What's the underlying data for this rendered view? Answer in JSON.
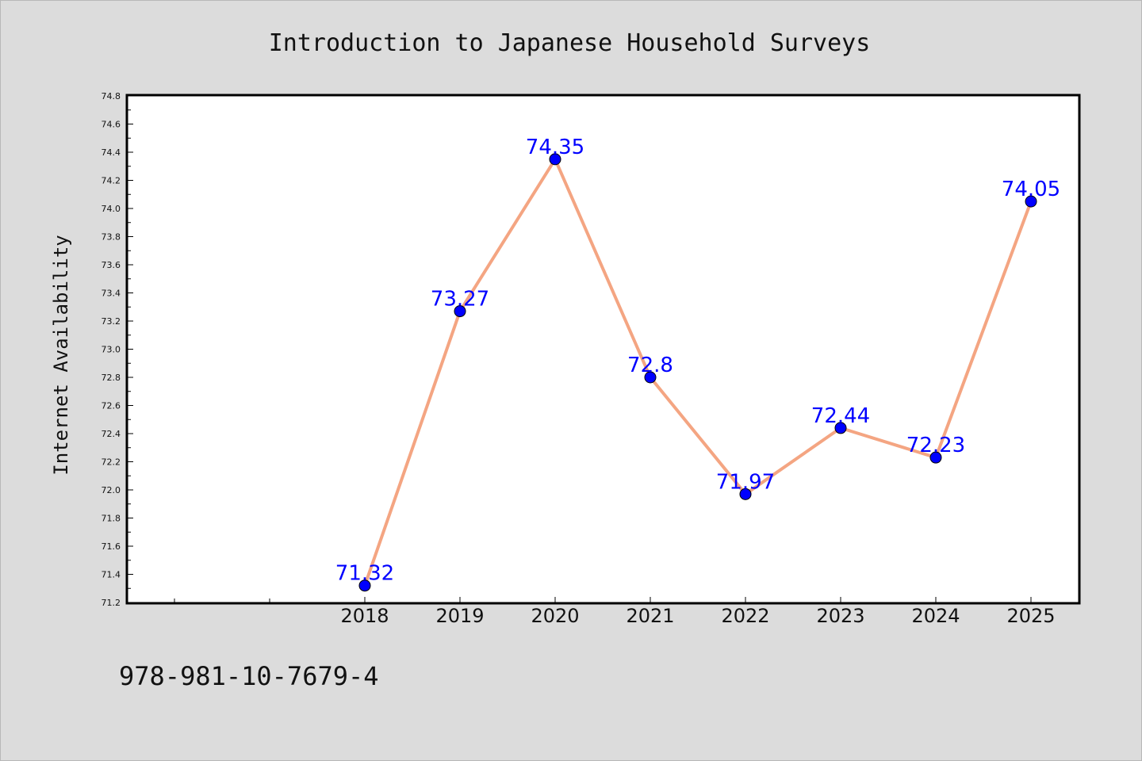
{
  "chart_data": {
    "type": "line",
    "title": "Introduction to Japanese Household Surveys",
    "xlabel": "",
    "ylabel": "Internet Availability",
    "categories": [
      "2018",
      "2019",
      "2020",
      "2021",
      "2022",
      "2023",
      "2024",
      "2025"
    ],
    "series": [
      {
        "values": [
          71.32,
          73.27,
          74.35,
          72.8,
          71.97,
          72.44,
          72.23,
          74.05
        ],
        "data_labels": [
          "71.32",
          "73.27",
          "74.35",
          "72.8",
          "71.97",
          "72.44",
          "72.23",
          "74.05"
        ]
      }
    ],
    "ylim": [
      71.2,
      74.8
    ],
    "yticks": [
      "71.2",
      "71.4",
      "71.6",
      "71.8",
      "72.0",
      "72.2",
      "72.4",
      "72.6",
      "72.8",
      "73.0",
      "73.2",
      "73.4",
      "73.6",
      "73.8",
      "74.0",
      "74.2",
      "74.4",
      "74.6",
      "74.8"
    ],
    "grid": false,
    "legend": "none",
    "colors": {
      "line": "#f4a582",
      "marker": "#0000ff",
      "label": "#0000ff",
      "background": "#dcdcdc",
      "plot_background": "#ffffff"
    }
  },
  "footer": {
    "isbn": "978-981-10-7679-4"
  }
}
